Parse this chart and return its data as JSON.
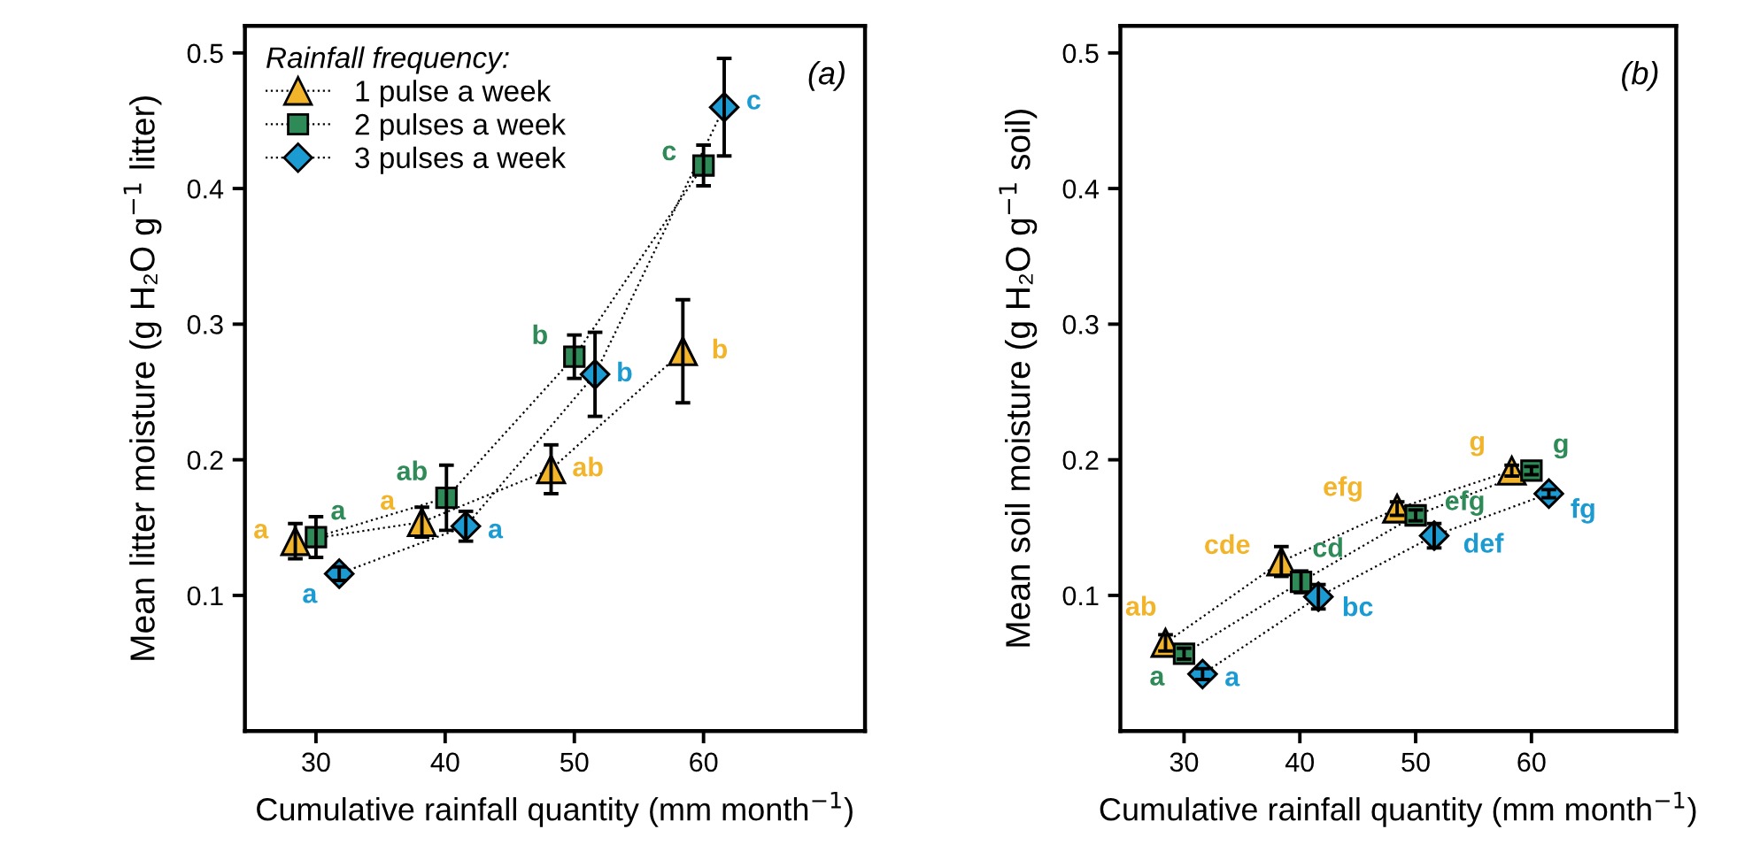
{
  "chart_data": [
    {
      "type": "scatter",
      "ylabel": "Mean litter moisture (g H₂O g$^{−1}$ litter)",
      "xlabel": "Cumulative rainfall quantity (mm month$^{−1}$)",
      "legend_title": "Rainfall frequency:",
      "annotations": [
        "(a)"
      ],
      "xlim": [
        24.5,
        72.5
      ],
      "xticks": [
        30,
        40,
        50,
        60
      ],
      "ylim": [
        0,
        0.52
      ],
      "yticks": [
        0.1,
        0.2,
        0.3,
        0.4,
        0.5
      ],
      "grid": false,
      "legend": "top left",
      "line_style": "dotted",
      "series": [
        {
          "name": "1 pulse a week",
          "color": "#f2b42a",
          "marker": "triangle",
          "x": [
            28.4,
            38.2,
            48.2,
            58.4
          ],
          "values": [
            0.14,
            0.154,
            0.193,
            0.28
          ],
          "errors": [
            0.013,
            0.011,
            0.018,
            0.038
          ],
          "value_labels": [
            "a",
            "a",
            "ab",
            "b"
          ]
        },
        {
          "name": "2 pulses a week",
          "color": "#2e8b57",
          "marker": "square",
          "x": [
            30.0,
            40.1,
            50.0,
            60.0
          ],
          "values": [
            0.143,
            0.172,
            0.276,
            0.417
          ],
          "errors": [
            0.015,
            0.024,
            0.016,
            0.015
          ],
          "value_labels": [
            "a",
            "ab",
            "b",
            "c"
          ]
        },
        {
          "name": "3 pulses a week",
          "color": "#1b9bd1",
          "marker": "diamond",
          "x": [
            31.8,
            41.6,
            51.6,
            61.6
          ],
          "values": [
            0.116,
            0.151,
            0.263,
            0.46
          ],
          "errors": [
            0.005,
            0.011,
            0.031,
            0.036
          ],
          "value_labels": [
            "a",
            "a",
            "b",
            "c"
          ]
        }
      ]
    },
    {
      "type": "scatter",
      "ylabel": "Mean soil moisture (g H₂O g$^{−1}$ soil)",
      "xlabel": "Cumulative rainfall quantity (mm month$^{−1}$)",
      "annotations": [
        "(b)"
      ],
      "xlim": [
        24.5,
        72.5
      ],
      "xticks": [
        30,
        40,
        50,
        60
      ],
      "ylim": [
        0,
        0.52
      ],
      "yticks": [
        0.1,
        0.2,
        0.3,
        0.4,
        0.5
      ],
      "grid": false,
      "legend": false,
      "line_style": "dotted",
      "series": [
        {
          "color": "#f2b42a",
          "marker": "triangle",
          "x": [
            28.4,
            38.4,
            48.4,
            58.3
          ],
          "values": [
            0.065,
            0.125,
            0.164,
            0.192
          ],
          "errors": [
            0.006,
            0.011,
            0.005,
            0.004
          ],
          "value_labels": [
            "ab",
            "cde",
            "efg",
            "g"
          ]
        },
        {
          "color": "#2e8b57",
          "marker": "square",
          "x": [
            30.0,
            40.1,
            50.0,
            60.0
          ],
          "values": [
            0.057,
            0.11,
            0.159,
            0.192
          ],
          "errors": [
            0.004,
            0.008,
            0.004,
            0.003
          ],
          "value_labels": [
            "a",
            "cd",
            "efg",
            "g"
          ]
        },
        {
          "color": "#1b9bd1",
          "marker": "diamond",
          "x": [
            31.6,
            41.6,
            51.6,
            61.5
          ],
          "values": [
            0.042,
            0.099,
            0.144,
            0.175
          ],
          "errors": [
            0.004,
            0.009,
            0.009,
            0.003
          ],
          "value_labels": [
            "a",
            "bc",
            "def",
            "fg"
          ]
        }
      ]
    }
  ]
}
